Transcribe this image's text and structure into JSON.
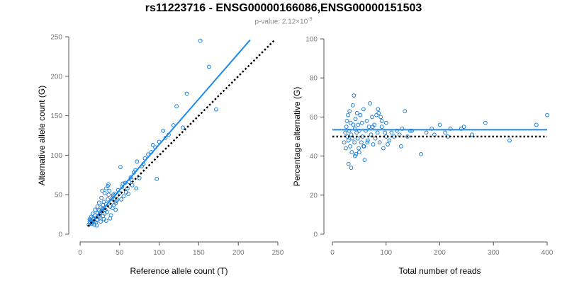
{
  "title": "rs11223716 - ENSG00000166086,ENSG00000151503",
  "subtitle": {
    "prefix": "p-value: 2.12×10",
    "exponent": "-9"
  },
  "colors": {
    "points": "#1f7fd6",
    "fit_line": "#1f8ae8",
    "reference_line": "#000000",
    "axis": "#555555",
    "tick_label": "#7a7a7a"
  },
  "chart_data": [
    {
      "type": "scatter",
      "title": "",
      "xlabel": "Reference allele count (T)",
      "ylabel": "Alternative allele count (G)",
      "xlim": [
        0,
        250
      ],
      "ylim": [
        0,
        250
      ],
      "xticks": [
        0,
        50,
        100,
        150,
        200,
        250
      ],
      "yticks": [
        0,
        50,
        100,
        150,
        200,
        250
      ],
      "grid": false,
      "lines": [
        {
          "style": "solid",
          "role": "fit",
          "x": [
            10,
            215
          ],
          "y": [
            10,
            246
          ]
        },
        {
          "style": "dotted",
          "role": "reference",
          "x": [
            10,
            245
          ],
          "y": [
            10,
            245
          ]
        }
      ],
      "points": [
        [
          12,
          16
        ],
        [
          13,
          14
        ],
        [
          14,
          17
        ],
        [
          12,
          19
        ],
        [
          15,
          15
        ],
        [
          13,
          18
        ],
        [
          16,
          20
        ],
        [
          15,
          13
        ],
        [
          14,
          22
        ],
        [
          18,
          16
        ],
        [
          17,
          19
        ],
        [
          20,
          15
        ],
        [
          19,
          24
        ],
        [
          21,
          18
        ],
        [
          22,
          27
        ],
        [
          24,
          30
        ],
        [
          23,
          22
        ],
        [
          26,
          34
        ],
        [
          25,
          26
        ],
        [
          28,
          32
        ],
        [
          27,
          29
        ],
        [
          29,
          37
        ],
        [
          31,
          26
        ],
        [
          30,
          41
        ],
        [
          33,
          38
        ],
        [
          32,
          31
        ],
        [
          35,
          44
        ],
        [
          34,
          28
        ],
        [
          36,
          50
        ],
        [
          38,
          35
        ],
        [
          37,
          55
        ],
        [
          40,
          45
        ],
        [
          42,
          48
        ],
        [
          41,
          33
        ],
        [
          44,
          51
        ],
        [
          46,
          42
        ],
        [
          45,
          39
        ],
        [
          48,
          56
        ],
        [
          50,
          52
        ],
        [
          52,
          44
        ],
        [
          53,
          60
        ],
        [
          55,
          48
        ],
        [
          57,
          65
        ],
        [
          58,
          53
        ],
        [
          60,
          58
        ],
        [
          62,
          66
        ],
        [
          64,
          72
        ],
        [
          66,
          62
        ],
        [
          68,
          78
        ],
        [
          71,
          58
        ],
        [
          72,
          92
        ],
        [
          75,
          71
        ],
        [
          78,
          86
        ],
        [
          82,
          96
        ],
        [
          86,
          101
        ],
        [
          90,
          104
        ],
        [
          92,
          113
        ],
        [
          97,
          70
        ],
        [
          100,
          117
        ],
        [
          105,
          131
        ],
        [
          108,
          122
        ],
        [
          112,
          126
        ],
        [
          118,
          138
        ],
        [
          122,
          162
        ],
        [
          130,
          135
        ],
        [
          135,
          178
        ],
        [
          152,
          245
        ],
        [
          163,
          212
        ],
        [
          172,
          158
        ],
        [
          24,
          40
        ],
        [
          27,
          46
        ],
        [
          31,
          52
        ],
        [
          36,
          63
        ],
        [
          33,
          58
        ],
        [
          22,
          35
        ],
        [
          19,
          31
        ],
        [
          25,
          21
        ],
        [
          29,
          23
        ],
        [
          16,
          26
        ],
        [
          18,
          12
        ],
        [
          21,
          11
        ],
        [
          11,
          12
        ],
        [
          26,
          16
        ],
        [
          30,
          19
        ],
        [
          39,
          24
        ],
        [
          43,
          37
        ],
        [
          47,
          44
        ],
        [
          54,
          64
        ],
        [
          51,
          85
        ],
        [
          61,
          51
        ],
        [
          38,
          20
        ],
        [
          33,
          17
        ],
        [
          45,
          31
        ],
        [
          28,
          55
        ],
        [
          35,
          61
        ],
        [
          42,
          50
        ],
        [
          65,
          69
        ],
        [
          70,
          81
        ],
        [
          80,
          89
        ],
        [
          95,
          110
        ]
      ]
    },
    {
      "type": "scatter",
      "title": "",
      "xlabel": "Total number of reads",
      "ylabel": "Percentage alternative (G)",
      "xlim": [
        0,
        400
      ],
      "ylim": [
        0,
        100
      ],
      "xticks": [
        0,
        100,
        200,
        300,
        400
      ],
      "yticks": [
        0,
        20,
        40,
        60,
        80,
        100
      ],
      "grid": false,
      "lines": [
        {
          "style": "solid",
          "role": "fit",
          "x": [
            0,
            400
          ],
          "y": [
            53.5,
            53.5
          ]
        },
        {
          "style": "dotted",
          "role": "reference",
          "x": [
            0,
            400
          ],
          "y": [
            50,
            50
          ]
        }
      ],
      "points": [
        [
          22,
          47
        ],
        [
          24,
          52
        ],
        [
          25,
          44
        ],
        [
          26,
          55
        ],
        [
          27,
          58
        ],
        [
          28,
          50
        ],
        [
          29,
          61
        ],
        [
          30,
          48
        ],
        [
          31,
          53
        ],
        [
          32,
          63
        ],
        [
          33,
          45
        ],
        [
          34,
          57
        ],
        [
          35,
          51
        ],
        [
          36,
          42
        ],
        [
          37,
          49
        ],
        [
          38,
          66
        ],
        [
          39,
          56
        ],
        [
          40,
          71
        ],
        [
          41,
          47
        ],
        [
          42,
          54
        ],
        [
          43,
          59
        ],
        [
          44,
          41
        ],
        [
          45,
          52
        ],
        [
          46,
          62
        ],
        [
          47,
          49
        ],
        [
          48,
          56
        ],
        [
          49,
          44
        ],
        [
          50,
          53
        ],
        [
          52,
          61
        ],
        [
          54,
          47
        ],
        [
          55,
          57
        ],
        [
          56,
          50
        ],
        [
          58,
          64
        ],
        [
          59,
          45
        ],
        [
          60,
          38
        ],
        [
          62,
          53
        ],
        [
          64,
          58
        ],
        [
          66,
          48
        ],
        [
          68,
          55
        ],
        [
          70,
          67
        ],
        [
          72,
          51
        ],
        [
          74,
          60
        ],
        [
          76,
          46
        ],
        [
          78,
          56
        ],
        [
          80,
          49
        ],
        [
          82,
          61
        ],
        [
          84,
          52
        ],
        [
          86,
          62
        ],
        [
          88,
          47
        ],
        [
          90,
          60
        ],
        [
          92,
          55
        ],
        [
          95,
          44
        ],
        [
          98,
          52
        ],
        [
          100,
          50
        ],
        [
          103,
          46
        ],
        [
          106,
          48
        ],
        [
          110,
          52
        ],
        [
          115,
          50
        ],
        [
          120,
          53
        ],
        [
          125,
          51
        ],
        [
          130,
          54
        ],
        [
          135,
          63
        ],
        [
          140,
          50
        ],
        [
          148,
          53
        ],
        [
          165,
          41
        ],
        [
          175,
          52
        ],
        [
          185,
          54
        ],
        [
          190,
          51
        ],
        [
          200,
          56
        ],
        [
          210,
          52
        ],
        [
          215,
          50
        ],
        [
          220,
          54
        ],
        [
          240,
          54
        ],
        [
          245,
          55
        ],
        [
          260,
          51
        ],
        [
          285,
          57
        ],
        [
          330,
          48
        ],
        [
          380,
          56
        ],
        [
          400,
          61
        ],
        [
          30,
          36
        ],
        [
          35,
          34
        ],
        [
          42,
          40
        ],
        [
          50,
          42
        ],
        [
          58,
          45
        ],
        [
          65,
          47
        ],
        [
          75,
          55
        ],
        [
          85,
          64
        ],
        [
          92,
          58
        ],
        [
          100,
          57
        ],
        [
          128,
          45
        ],
        [
          145,
          53
        ]
      ]
    }
  ]
}
